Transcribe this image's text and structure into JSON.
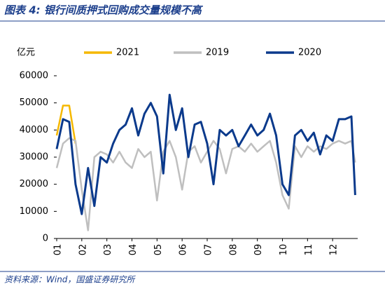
{
  "chart_data": {
    "type": "line",
    "title": "图表 4: 银行间质押式回购成交量规模不高",
    "y_label": "亿元",
    "source": "资料来源：Wind，国盛证券研究所",
    "x": [
      1.0,
      1.25,
      1.5,
      1.75,
      2.0,
      2.25,
      2.5,
      2.75,
      3.0,
      3.25,
      3.5,
      3.75,
      4.0,
      4.25,
      4.5,
      4.75,
      5.0,
      5.25,
      5.5,
      5.75,
      6.0,
      6.25,
      6.5,
      6.75,
      7.0,
      7.25,
      7.5,
      7.75,
      8.0,
      8.25,
      8.5,
      8.75,
      9.0,
      9.25,
      9.5,
      9.75,
      10.0,
      10.25,
      10.5,
      10.75,
      11.0,
      11.25,
      11.5,
      11.75,
      12.0,
      12.25,
      12.5,
      12.75,
      12.9
    ],
    "series": [
      {
        "name": "2021",
        "color": "#f5b800",
        "values": [
          38000,
          49000,
          49000,
          35000,
          null,
          null,
          null,
          null,
          null,
          null,
          null,
          null,
          null,
          null,
          null,
          null,
          null,
          null,
          null,
          null,
          null,
          null,
          null,
          null,
          null,
          null,
          null,
          null,
          null,
          null,
          null,
          null,
          null,
          null,
          null,
          null,
          null,
          null,
          null,
          null,
          null,
          null,
          null,
          null,
          null,
          null,
          null,
          null,
          null
        ]
      },
      {
        "name": "2019",
        "color": "#bfbfbf",
        "values": [
          26000,
          35000,
          37000,
          36000,
          18000,
          3000,
          30000,
          32000,
          31000,
          28000,
          32000,
          28000,
          26000,
          33000,
          30000,
          32000,
          14000,
          32000,
          36000,
          30000,
          18000,
          32000,
          34000,
          28000,
          32000,
          36000,
          33000,
          24000,
          33000,
          34000,
          32000,
          35000,
          32000,
          34000,
          36000,
          28000,
          16000,
          11000,
          34000,
          30000,
          34000,
          32000,
          34000,
          33000,
          35000,
          36000,
          35000,
          36000,
          28000
        ]
      },
      {
        "name": "2020",
        "color": "#0b3a8c",
        "values": [
          33000,
          44000,
          43000,
          20000,
          9000,
          26000,
          12000,
          30000,
          28000,
          35000,
          40000,
          42000,
          48000,
          38000,
          46000,
          50000,
          45000,
          24000,
          53000,
          40000,
          48000,
          30000,
          42000,
          43000,
          35000,
          20000,
          40000,
          38000,
          40000,
          34000,
          38000,
          42000,
          38000,
          40000,
          46000,
          38000,
          20000,
          16000,
          38000,
          40000,
          36000,
          39000,
          31000,
          38000,
          36000,
          44000,
          44000,
          45000,
          16000
        ]
      }
    ],
    "xlim": [
      1,
      13
    ],
    "xticks": [
      {
        "value": 1,
        "label": "01"
      },
      {
        "value": 2,
        "label": "02"
      },
      {
        "value": 3,
        "label": "03"
      },
      {
        "value": 4,
        "label": "04"
      },
      {
        "value": 5,
        "label": "05"
      },
      {
        "value": 6,
        "label": "06"
      },
      {
        "value": 7,
        "label": "07"
      },
      {
        "value": 8,
        "label": "08"
      },
      {
        "value": 9,
        "label": "09"
      },
      {
        "value": 10,
        "label": "10"
      },
      {
        "value": 11,
        "label": "11"
      },
      {
        "value": 12,
        "label": "12"
      }
    ],
    "ylim": [
      0,
      60000
    ],
    "yticks": [
      0,
      10000,
      20000,
      30000,
      40000,
      50000,
      60000
    ]
  }
}
